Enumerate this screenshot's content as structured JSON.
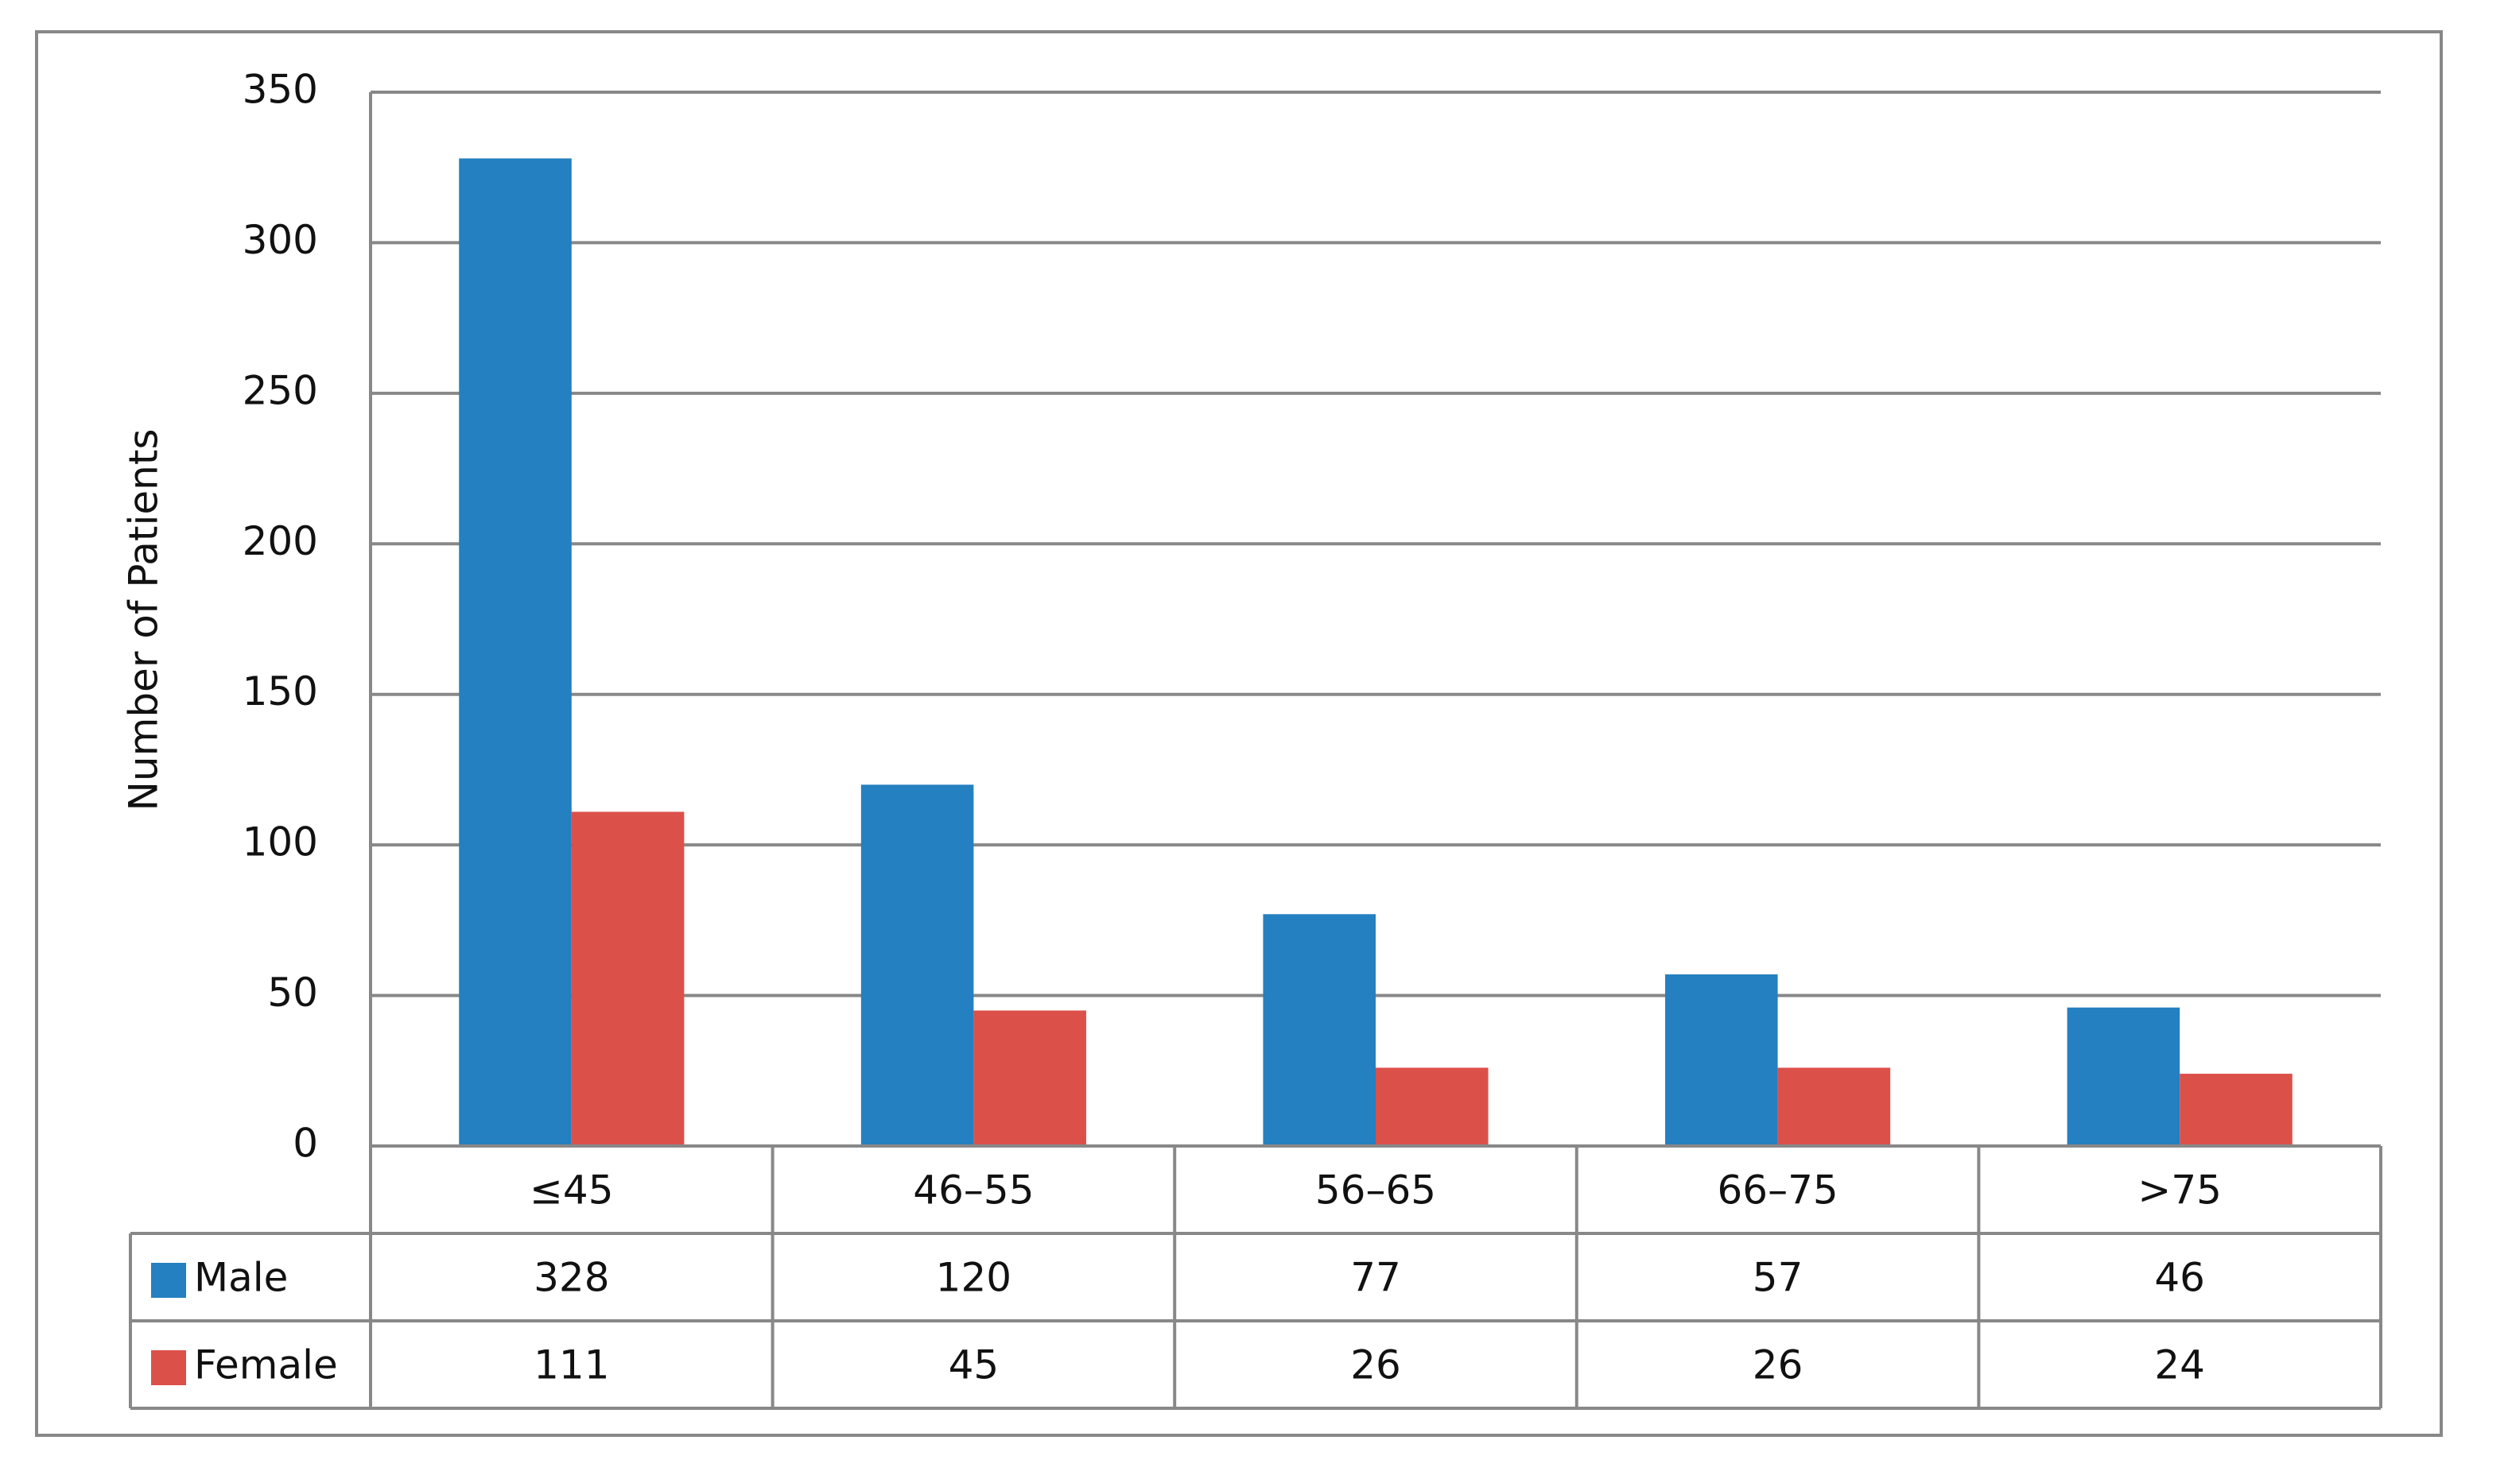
{
  "chart_data": {
    "type": "bar",
    "y_label": "Number of Patients",
    "categories": [
      "≤45",
      "46–55",
      "56–65",
      "66–75",
      ">75"
    ],
    "series": [
      {
        "name": "Male",
        "color": "#2480c0",
        "values": [
          328,
          120,
          77,
          57,
          46
        ]
      },
      {
        "name": "Female",
        "color": "#dc504a",
        "values": [
          111,
          45,
          26,
          26,
          24
        ]
      }
    ],
    "ylim": [
      0,
      350
    ],
    "yticks": [
      0,
      50,
      100,
      150,
      200,
      250,
      300,
      350
    ],
    "grid": true,
    "data_table": true
  }
}
